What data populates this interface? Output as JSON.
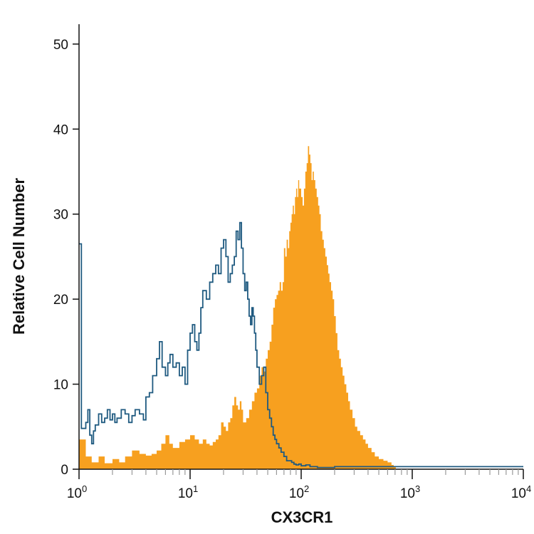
{
  "chart_data": {
    "type": "area",
    "title": "",
    "xlabel": "CX3CR1",
    "ylabel": "Relative Cell Number",
    "x_scale": "log",
    "xlim": [
      1,
      10000
    ],
    "ylim": [
      0,
      52
    ],
    "x_ticks": [
      {
        "base": "10",
        "exp": "0",
        "value": 1
      },
      {
        "base": "10",
        "exp": "1",
        "value": 10
      },
      {
        "base": "10",
        "exp": "2",
        "value": 100
      },
      {
        "base": "10",
        "exp": "3",
        "value": 1000
      },
      {
        "base": "10",
        "exp": "4",
        "value": 10000
      }
    ],
    "y_ticks": [
      "0",
      "10",
      "20",
      "30",
      "40",
      "50"
    ],
    "y_tick_values": [
      0,
      10,
      20,
      30,
      40,
      50
    ],
    "grid": false,
    "legend": "none",
    "series": [
      {
        "style": "filled",
        "color": "#f7a01f",
        "x": [
          1,
          1.15,
          1.3,
          1.5,
          1.7,
          2,
          2.3,
          2.6,
          3,
          3.5,
          4,
          4.5,
          5,
          5.5,
          6,
          6.5,
          7,
          8,
          9,
          10,
          11,
          12,
          13,
          14,
          15,
          16,
          17,
          18,
          19,
          20,
          21,
          22,
          23,
          24,
          25,
          26,
          27,
          28,
          29,
          30,
          32,
          34,
          36,
          38,
          40,
          42,
          44,
          46,
          48,
          50,
          52,
          54,
          56,
          58,
          60,
          62,
          64,
          66,
          68,
          70,
          72,
          74,
          76,
          78,
          80,
          82,
          84,
          86,
          88,
          90,
          92,
          94,
          96,
          98,
          100,
          103,
          106,
          109,
          112,
          115,
          118,
          121,
          124,
          127,
          130,
          134,
          138,
          142,
          146,
          150,
          155,
          160,
          165,
          170,
          175,
          180,
          186,
          192,
          198,
          205,
          212,
          220,
          228,
          236,
          245,
          255,
          265,
          275,
          290,
          305,
          320,
          340,
          360,
          380,
          400,
          430,
          460,
          500,
          550,
          600,
          650,
          680
        ],
        "y": [
          3.5,
          1.5,
          0.8,
          1.5,
          0.7,
          1.2,
          0.8,
          1.5,
          2.2,
          1.8,
          1.6,
          1.8,
          2.2,
          3,
          4,
          3,
          2.5,
          3.2,
          3.5,
          4,
          3.5,
          3,
          3.5,
          3,
          2.8,
          3.2,
          3.5,
          4,
          5.5,
          5,
          4.5,
          5.5,
          6,
          7.5,
          8.5,
          7.5,
          7,
          8,
          7,
          5.5,
          6,
          7,
          8,
          9,
          9.5,
          11,
          12,
          11.5,
          13,
          14,
          15,
          17,
          19,
          20,
          20.5,
          21,
          22,
          21,
          22,
          26,
          25,
          27,
          26,
          28,
          29,
          30,
          31,
          30,
          32,
          33,
          32,
          34,
          33,
          33,
          32,
          31,
          33,
          35,
          36,
          38,
          37,
          36,
          34,
          35,
          34,
          33,
          32,
          31,
          30,
          28,
          27,
          26,
          25,
          24,
          23,
          22,
          21,
          20,
          18,
          16,
          14,
          13,
          12,
          11,
          10,
          9,
          8,
          7,
          6,
          5,
          4.5,
          4,
          3.5,
          3,
          2.5,
          2,
          1.5,
          1.2,
          1,
          0.8,
          0.5,
          0.3
        ]
      },
      {
        "style": "outline",
        "color": "#1f5a80",
        "x": [
          1,
          1.02,
          1.05,
          1.1,
          1.15,
          1.2,
          1.25,
          1.3,
          1.35,
          1.4,
          1.5,
          1.6,
          1.7,
          1.8,
          1.9,
          2,
          2.1,
          2.2,
          2.4,
          2.6,
          2.8,
          3,
          3.2,
          3.5,
          3.8,
          4,
          4.3,
          4.6,
          5,
          5.3,
          5.6,
          6,
          6.3,
          6.6,
          7,
          7.5,
          8,
          8.5,
          9,
          9.5,
          10,
          10.5,
          11,
          11.5,
          12,
          12.5,
          13,
          14,
          15,
          16,
          17,
          18,
          19,
          20,
          21,
          22,
          23,
          24,
          25,
          26,
          27,
          28,
          29,
          30,
          31,
          32,
          33,
          34,
          35,
          36,
          37,
          38,
          39,
          40,
          42,
          44,
          46,
          48,
          50,
          52,
          54,
          56,
          58,
          60,
          63,
          66,
          70,
          74,
          78,
          82,
          86,
          90,
          95,
          100,
          110,
          120,
          130,
          140,
          150,
          170,
          200,
          300,
          500,
          1000,
          3000,
          10000
        ],
        "y": [
          26.5,
          26.5,
          4.8,
          4.8,
          5.5,
          7,
          4,
          3,
          4.5,
          5.2,
          6.5,
          5.5,
          6,
          7,
          5.8,
          6.5,
          5.5,
          6,
          7,
          6.5,
          5.5,
          6.3,
          7,
          6.5,
          5.8,
          8.5,
          9,
          11,
          13,
          15,
          12,
          11,
          12.5,
          13.5,
          12,
          12.5,
          11,
          12,
          10,
          14,
          16,
          17,
          15,
          14,
          16,
          19,
          21,
          20,
          22,
          23,
          24,
          23,
          26,
          27,
          25,
          22,
          23,
          24,
          25,
          28,
          27,
          29,
          26,
          23,
          21,
          22,
          20,
          18,
          17,
          19,
          18,
          16,
          14,
          12,
          10,
          11,
          12,
          9,
          7,
          6,
          5,
          4,
          3.5,
          3,
          2.5,
          2,
          1.5,
          1,
          1,
          0.8,
          0.6,
          0.5,
          0.6,
          0.4,
          0.5,
          0.3,
          0.3,
          0.2,
          0.2,
          0.2,
          0.3,
          0.3,
          0.3,
          0.3,
          0.3,
          0.3
        ]
      }
    ]
  }
}
